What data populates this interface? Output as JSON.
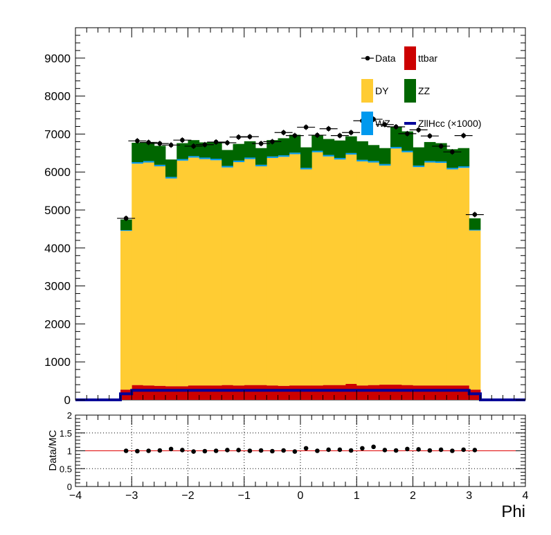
{
  "chart_data": [
    {
      "type": "stacked-histogram",
      "xlim": [
        -4,
        4
      ],
      "ylim": [
        0,
        9800
      ],
      "yticks": [
        0,
        1000,
        2000,
        3000,
        4000,
        5000,
        6000,
        7000,
        8000,
        9000
      ],
      "xticks": [
        -4,
        -3,
        -2,
        -1,
        0,
        1,
        2,
        3,
        4
      ],
      "bin_edges": [
        -3.2,
        -3.0,
        -2.8,
        -2.6,
        -2.4,
        -2.2,
        -2.0,
        -1.8,
        -1.6,
        -1.4,
        -1.2,
        -1.0,
        -0.8,
        -0.6,
        -0.4,
        -0.2,
        0.0,
        0.2,
        0.4,
        0.6,
        0.8,
        1.0,
        1.2,
        1.4,
        1.6,
        1.8,
        2.0,
        2.2,
        2.4,
        2.6,
        2.8,
        3.0,
        3.2
      ],
      "series": [
        {
          "name": "ttbar",
          "color": "#cc0000",
          "values": [
            270,
            390,
            380,
            370,
            360,
            360,
            380,
            380,
            380,
            390,
            380,
            390,
            390,
            380,
            370,
            380,
            380,
            380,
            390,
            390,
            420,
            380,
            390,
            400,
            400,
            390,
            380,
            380,
            380,
            380,
            380,
            270
          ]
        },
        {
          "name": "DY",
          "color": "#ffcc33",
          "values": [
            4180,
            5830,
            5870,
            5780,
            5470,
            5940,
            6000,
            5960,
            5930,
            5730,
            5880,
            5950,
            5760,
            5990,
            6030,
            6090,
            5690,
            6140,
            6020,
            5940,
            6040,
            5900,
            5860,
            5770,
            6220,
            6130,
            5750,
            5870,
            5860,
            5690,
            5730,
            4190
          ]
        },
        {
          "name": "WZ",
          "color": "#0099ee",
          "values": [
            20,
            40,
            40,
            40,
            40,
            40,
            40,
            40,
            40,
            40,
            40,
            40,
            40,
            40,
            40,
            40,
            40,
            40,
            40,
            40,
            40,
            40,
            40,
            40,
            40,
            40,
            40,
            40,
            40,
            40,
            40,
            20
          ]
        },
        {
          "name": "ZZ",
          "color": "#006600",
          "values": [
            280,
            510,
            490,
            500,
            460,
            420,
            420,
            400,
            440,
            420,
            440,
            430,
            440,
            430,
            450,
            470,
            540,
            410,
            420,
            460,
            440,
            490,
            420,
            420,
            540,
            510,
            480,
            500,
            480,
            490,
            480,
            300
          ]
        }
      ],
      "signal": {
        "name": "ZllHcc (×1000)",
        "color": "#000099",
        "values": [
          160,
          250,
          250,
          250,
          250,
          250,
          250,
          250,
          250,
          250,
          250,
          250,
          250,
          250,
          250,
          250,
          250,
          250,
          250,
          250,
          250,
          250,
          250,
          250,
          250,
          250,
          250,
          250,
          250,
          250,
          250,
          160
        ]
      },
      "data": {
        "name": "Data",
        "x": [
          -3.1,
          -2.9,
          -2.7,
          -2.5,
          -2.3,
          -2.1,
          -1.9,
          -1.7,
          -1.5,
          -1.3,
          -1.1,
          -0.9,
          -0.7,
          -0.5,
          -0.3,
          -0.1,
          0.1,
          0.3,
          0.5,
          0.7,
          0.9,
          1.1,
          1.3,
          1.5,
          1.7,
          1.9,
          2.1,
          2.3,
          2.5,
          2.7,
          2.9,
          3.1
        ],
        "y": [
          4780,
          6820,
          6780,
          6750,
          6710,
          6840,
          6680,
          6720,
          6790,
          6770,
          6920,
          6930,
          6750,
          6800,
          7040,
          6960,
          7180,
          6970,
          7140,
          6960,
          7040,
          7350,
          7390,
          7250,
          7190,
          7010,
          7110,
          6950,
          6680,
          6530,
          6960,
          4880
        ]
      },
      "legend": {
        "placement": "top-right",
        "entries": [
          "Data",
          "ttbar",
          "DY",
          "ZZ",
          "WZ",
          "ZllHcc (×1000)"
        ]
      }
    },
    {
      "type": "scatter",
      "xlim": [
        -4,
        4
      ],
      "ylim": [
        0,
        2
      ],
      "xticks": [
        -4,
        -3,
        -2,
        -1,
        0,
        1,
        2,
        3,
        4
      ],
      "yticks": [
        0,
        0.5,
        1,
        1.5,
        2
      ],
      "xlabel": "Phi",
      "ylabel": "Data/MC",
      "grid": true,
      "reference_line": 1,
      "x": [
        -3.1,
        -2.9,
        -2.7,
        -2.5,
        -2.3,
        -2.1,
        -1.9,
        -1.7,
        -1.5,
        -1.3,
        -1.1,
        -0.9,
        -0.7,
        -0.5,
        -0.3,
        -0.1,
        0.1,
        0.3,
        0.5,
        0.7,
        0.9,
        1.1,
        1.3,
        1.5,
        1.7,
        1.9,
        2.1,
        2.3,
        2.5,
        2.7,
        2.9,
        3.1
      ],
      "y": [
        1.0,
        0.99,
        1.0,
        1.01,
        1.05,
        1.02,
        0.98,
        0.99,
        1.0,
        1.02,
        1.02,
        1.0,
        1.01,
        0.99,
        1.01,
        0.98,
        1.07,
        1.0,
        1.03,
        1.03,
        1.01,
        1.07,
        1.11,
        1.02,
        1.01,
        1.05,
        1.04,
        1.01,
        1.03,
        1.0,
        1.03,
        1.02
      ]
    }
  ]
}
